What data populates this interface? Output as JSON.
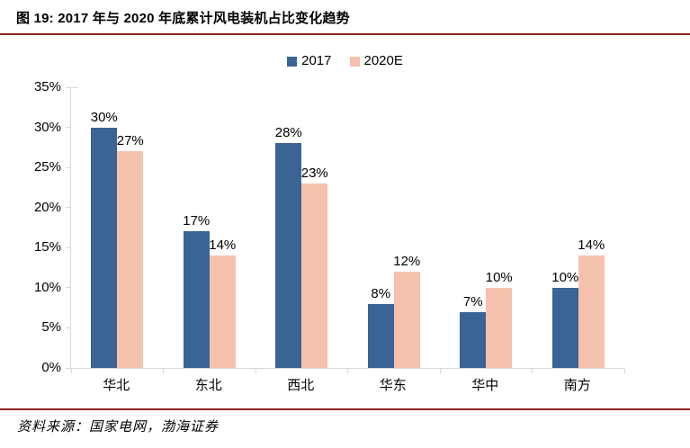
{
  "figure": {
    "title": "图 19: 2017 年与 2020 年底累计风电装机占比变化趋势",
    "source": "资料来源：国家电网，渤海证券"
  },
  "colors": {
    "series_2017": "#3B6394",
    "series_2020e": "#F4C2AC",
    "rule_red": "#8E2323",
    "axis_gray": "#D9D9D9",
    "text": "#000000"
  },
  "chart_data": {
    "type": "bar",
    "title": "2017 年与 2020 年底累计风电装机占比变化趋势",
    "categories": [
      "华北",
      "东北",
      "西北",
      "华东",
      "华中",
      "南方"
    ],
    "series": [
      {
        "name": "2017",
        "color": "#3B6394",
        "values": [
          30,
          17,
          28,
          8,
          7,
          10
        ]
      },
      {
        "name": "2020E",
        "color": "#F4C2AC",
        "values": [
          27,
          14,
          23,
          12,
          10,
          14
        ]
      }
    ],
    "data_labels": [
      [
        "30%",
        "17%",
        "28%",
        "8%",
        "7%",
        "10%"
      ],
      [
        "27%",
        "14%",
        "23%",
        "12%",
        "10%",
        "14%"
      ]
    ],
    "xlabel": "",
    "ylabel": "",
    "ylim": [
      0,
      35
    ],
    "ytick_step": 5,
    "ytick_labels": [
      "0%",
      "5%",
      "10%",
      "15%",
      "20%",
      "25%",
      "30%",
      "35%"
    ],
    "grid": false,
    "legend_position": "top-center"
  }
}
